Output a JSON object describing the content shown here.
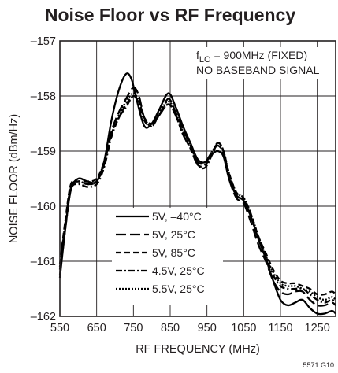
{
  "chart_data": {
    "type": "line",
    "title": "Noise Floor vs RF Frequency",
    "xlabel": "RF FREQUENCY (MHz)",
    "ylabel": "NOISE FLOOR (dBm/Hz)",
    "xlim": [
      550,
      1300
    ],
    "ylim": [
      -162,
      -157
    ],
    "x_ticks": [
      550,
      650,
      750,
      850,
      950,
      1050,
      1150,
      1250
    ],
    "x_tick_labels": [
      "550",
      "650",
      "750",
      "850",
      "950",
      "1050",
      "1150",
      "1250"
    ],
    "y_ticks": [
      -162,
      -161,
      -160,
      -159,
      -158,
      -157
    ],
    "y_tick_labels": [
      "–162",
      "–161",
      "–160",
      "–159",
      "–158",
      "–157"
    ],
    "grid": true,
    "legend_placement": "bottom-left",
    "annotation": {
      "line1_main": "f",
      "line1_sub": "LO",
      "line1_rest": " = 900MHz (FIXED)",
      "line2": "NO BASEBAND SIGNAL"
    },
    "figure_code": "5571 G10",
    "series": [
      {
        "name": "5V, –40°C",
        "dash": "solid",
        "x": [
          550,
          565,
          580,
          600,
          625,
          650,
          670,
          690,
          710,
          730,
          745,
          760,
          780,
          800,
          820,
          845,
          865,
          885,
          905,
          925,
          945,
          965,
          980,
          995,
          1010,
          1030,
          1050,
          1070,
          1090,
          1110,
          1130,
          1150,
          1170,
          1190,
          1210,
          1230,
          1250,
          1270,
          1290,
          1300
        ],
        "y": [
          -161.3,
          -160.4,
          -159.7,
          -159.5,
          -159.55,
          -159.55,
          -159.2,
          -158.45,
          -157.9,
          -157.6,
          -157.7,
          -158.1,
          -158.55,
          -158.5,
          -158.25,
          -157.95,
          -158.2,
          -158.55,
          -158.85,
          -159.15,
          -159.2,
          -159.05,
          -159.0,
          -159.1,
          -159.5,
          -159.8,
          -159.9,
          -160.2,
          -160.6,
          -160.95,
          -161.35,
          -161.7,
          -161.8,
          -161.75,
          -161.7,
          -161.85,
          -161.95,
          -161.95,
          -161.9,
          -161.95
        ]
      },
      {
        "name": "5V, 25°C",
        "dash": "long",
        "x": [
          550,
          565,
          580,
          600,
          625,
          650,
          670,
          690,
          710,
          730,
          750,
          765,
          780,
          800,
          820,
          845,
          865,
          885,
          905,
          925,
          945,
          965,
          980,
          995,
          1010,
          1030,
          1050,
          1070,
          1090,
          1110,
          1130,
          1150,
          1170,
          1190,
          1210,
          1230,
          1250,
          1270,
          1290,
          1300
        ],
        "y": [
          -161.15,
          -160.3,
          -159.65,
          -159.55,
          -159.6,
          -159.55,
          -159.25,
          -158.65,
          -158.3,
          -158.05,
          -157.85,
          -158.0,
          -158.4,
          -158.5,
          -158.35,
          -158.05,
          -158.3,
          -158.6,
          -158.9,
          -159.2,
          -159.2,
          -159.0,
          -158.9,
          -159.05,
          -159.5,
          -159.85,
          -159.95,
          -160.3,
          -160.7,
          -161.0,
          -161.35,
          -161.55,
          -161.6,
          -161.55,
          -161.55,
          -161.7,
          -161.8,
          -161.8,
          -161.75,
          -161.8
        ]
      },
      {
        "name": "5V, 85°C",
        "dash": "short",
        "x": [
          550,
          565,
          580,
          600,
          625,
          650,
          670,
          690,
          710,
          730,
          750,
          765,
          780,
          800,
          820,
          845,
          865,
          885,
          905,
          925,
          945,
          965,
          980,
          995,
          1010,
          1030,
          1050,
          1070,
          1090,
          1110,
          1130,
          1150,
          1170,
          1190,
          1210,
          1230,
          1250,
          1270,
          1290,
          1300
        ],
        "y": [
          -161.05,
          -160.25,
          -159.6,
          -159.55,
          -159.55,
          -159.5,
          -159.2,
          -158.7,
          -158.4,
          -158.15,
          -158.0,
          -158.1,
          -158.4,
          -158.5,
          -158.35,
          -158.15,
          -158.35,
          -158.7,
          -158.95,
          -159.25,
          -159.25,
          -159.05,
          -158.85,
          -159.0,
          -159.4,
          -159.75,
          -159.85,
          -160.15,
          -160.55,
          -160.85,
          -161.15,
          -161.35,
          -161.4,
          -161.4,
          -161.45,
          -161.5,
          -161.6,
          -161.6,
          -161.55,
          -161.6
        ]
      },
      {
        "name": "4.5V, 25°C",
        "dash": "dash-dot",
        "x": [
          550,
          565,
          580,
          600,
          625,
          650,
          670,
          690,
          710,
          730,
          750,
          765,
          780,
          800,
          820,
          845,
          865,
          885,
          905,
          925,
          945,
          965,
          980,
          995,
          1010,
          1030,
          1050,
          1070,
          1090,
          1110,
          1130,
          1150,
          1170,
          1190,
          1210,
          1230,
          1250,
          1270,
          1290,
          1300
        ],
        "y": [
          -161.25,
          -160.4,
          -159.7,
          -159.6,
          -159.65,
          -159.6,
          -159.3,
          -158.75,
          -158.4,
          -158.2,
          -158.0,
          -158.15,
          -158.45,
          -158.55,
          -158.35,
          -158.15,
          -158.35,
          -158.7,
          -158.95,
          -159.25,
          -159.3,
          -159.05,
          -158.85,
          -159.0,
          -159.45,
          -159.8,
          -159.9,
          -160.2,
          -160.6,
          -160.9,
          -161.25,
          -161.45,
          -161.5,
          -161.5,
          -161.5,
          -161.6,
          -161.7,
          -161.75,
          -161.7,
          -161.75
        ]
      },
      {
        "name": "5.5V, 25°C",
        "dash": "dotted",
        "x": [
          550,
          565,
          580,
          600,
          625,
          650,
          670,
          690,
          710,
          730,
          750,
          765,
          780,
          800,
          820,
          845,
          865,
          885,
          905,
          925,
          945,
          965,
          980,
          995,
          1010,
          1030,
          1050,
          1070,
          1090,
          1110,
          1130,
          1150,
          1170,
          1190,
          1210,
          1230,
          1250,
          1270,
          1290,
          1300
        ],
        "y": [
          -161.1,
          -160.3,
          -159.65,
          -159.55,
          -159.6,
          -159.55,
          -159.2,
          -158.7,
          -158.35,
          -158.1,
          -157.95,
          -158.1,
          -158.4,
          -158.55,
          -158.3,
          -158.1,
          -158.3,
          -158.65,
          -158.9,
          -159.2,
          -159.2,
          -159.0,
          -158.85,
          -159.0,
          -159.4,
          -159.75,
          -159.85,
          -160.15,
          -160.55,
          -160.9,
          -161.2,
          -161.4,
          -161.45,
          -161.45,
          -161.5,
          -161.55,
          -161.65,
          -161.7,
          -161.65,
          -161.7
        ]
      }
    ]
  }
}
